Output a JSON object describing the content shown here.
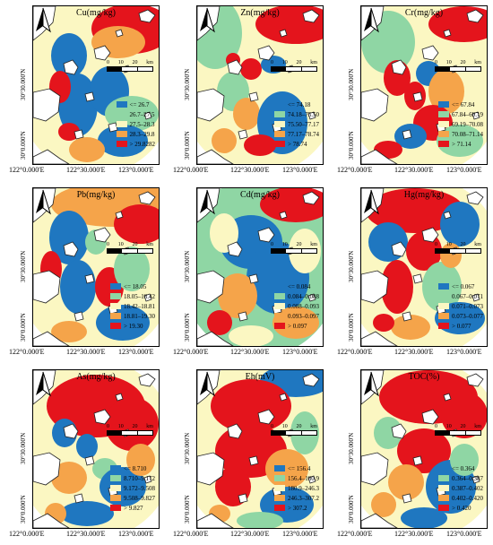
{
  "axis_labels": {
    "lon": [
      "122°0.000'E",
      "122°30.000'E",
      "123°0.000'E"
    ],
    "lat": [
      "30°30.000'N",
      "30°0.000'N"
    ]
  },
  "scale": {
    "ticks": [
      "0",
      "10",
      "20"
    ],
    "unit": "km"
  },
  "colors": [
    "#1f77c0",
    "#8fd6a4",
    "#fbf7c2",
    "#f5a44a",
    "#e4141c"
  ],
  "panels": [
    {
      "title": "Cu(mg/kg)",
      "legend": [
        "<= 26.7",
        "26.7–27.5",
        "27.5–28.3",
        "28.3–29.8",
        "> 29.8282"
      ]
    },
    {
      "title": "Zn(mg/kg)",
      "legend": [
        "<= 74.18",
        "74.18–75.50",
        "75.50–77.17",
        "77.17–78.74",
        "> 78.74"
      ]
    },
    {
      "title": "Cr(mg/kg)",
      "legend": [
        "<= 67.84",
        "67.84–69.19",
        "69.19–70.08",
        "70.08–71.14",
        "> 71.14"
      ]
    },
    {
      "title": "Pb(mg/kg)",
      "legend": [
        "<= 18.05",
        "18.05–18.42",
        "18.42–18.81",
        "18.81–19.30",
        "> 19.30"
      ]
    },
    {
      "title": "Cd(mg/kg)",
      "legend": [
        "<= 0.084",
        "0.084–0.088",
        "0.088–0.093",
        "0.093–0.097",
        "> 0.097"
      ]
    },
    {
      "title": "Hg(mg/kg)",
      "legend": [
        "<= 0.067",
        "0.067–0.071",
        "0.071–0.073",
        "0.073–0.077",
        "> 0.077"
      ]
    },
    {
      "title": "As(mg/kg)",
      "legend": [
        "<= 8.710",
        "8.710–9.172",
        "9.172–9.508",
        "9.508–9.827",
        "> 9.827"
      ]
    },
    {
      "title": "Eh(mV)",
      "legend": [
        "<= 156.4",
        "156.4–180.9",
        "180.9–246.3",
        "246.3–307.2",
        "> 307.2"
      ]
    },
    {
      "title": "TOC(%)",
      "legend": [
        "<= 0.364",
        "0.364–0.387",
        "0.387–0.402",
        "0.402–0.420",
        "> 0.420"
      ]
    }
  ]
}
